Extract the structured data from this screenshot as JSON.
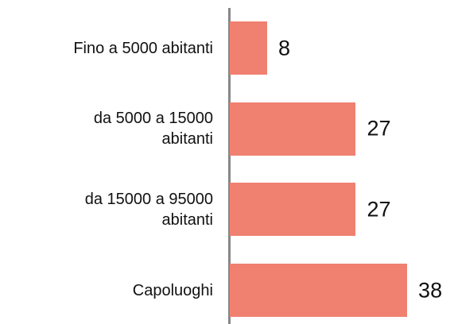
{
  "chart_data": {
    "type": "barh",
    "categories": [
      "Fino a 5000 abitanti",
      "da 5000 a 15000 abitanti",
      "da 15000 a 95000 abitanti",
      "Capoluoghi"
    ],
    "values": [
      8,
      27,
      27,
      38
    ],
    "color": "#f08070"
  }
}
